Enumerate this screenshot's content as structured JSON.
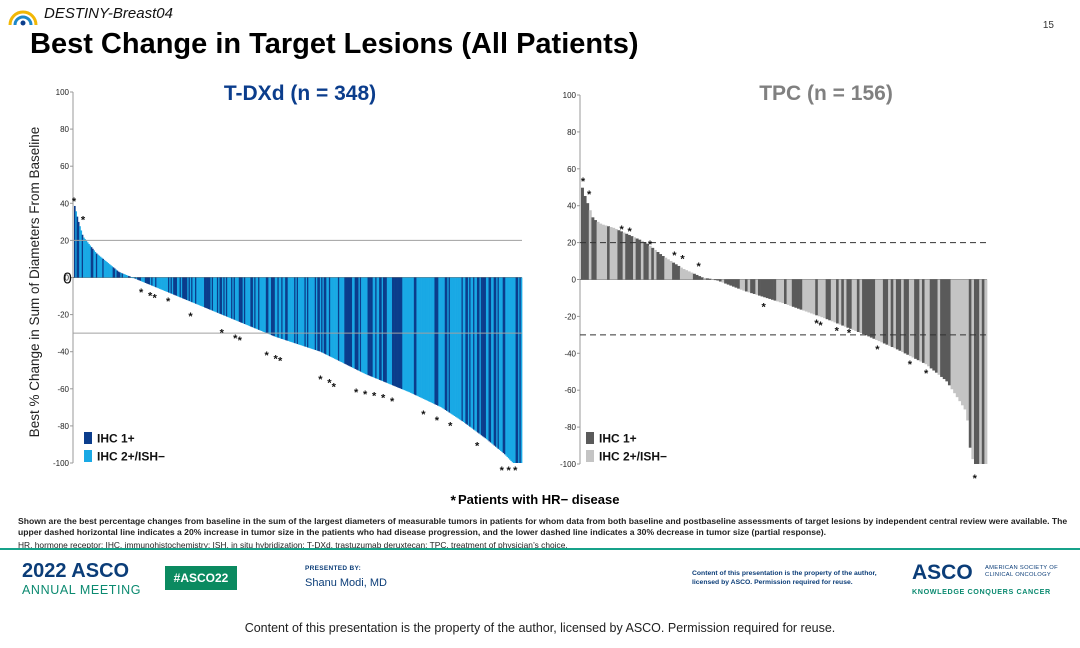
{
  "header": {
    "study_name": "DESTINY-Breast04",
    "slide_number": "15",
    "title": "Best Change in Target Lesions (All Patients)"
  },
  "y_axis_label": "Best % Change in Sum of Diameters From Baseline",
  "footnote": {
    "hr_negative_marker": "*",
    "hr_negative_label": "Patients with HR− disease",
    "main": "Shown are the best percentage changes from baseline in the sum of the largest diameters of measurable tumors in patients for whom data from both baseline and postbaseline assessments of target lesions by independent central review were available. The upper dashed horizontal line indicates a 20% increase in tumor size in the patients who had disease progression, and the lower dashed line indicates a 30% decrease in tumor size (partial response).",
    "abbreviations": "HR, hormone receptor; IHC, immunohistochemistry; ISH, in situ hybridization; T-DXd, trastuzumab deruxtecan; TPC, treatment of physician’s choice."
  },
  "footer": {
    "meeting_year": "2022 ASCO",
    "meeting_label": "ANNUAL MEETING",
    "hashtag": "#ASCO22",
    "presented_by_label": "PRESENTED BY:",
    "presenter": "Shanu Modi, MD",
    "copyright_small": "Content of this presentation is the property of the author, licensed by ASCO. Permission required for reuse.",
    "society_mark": "ASCO",
    "society_name_line1": "AMERICAN SOCIETY OF",
    "society_name_line2": "CLINICAL ONCOLOGY",
    "society_tagline": "KNOWLEDGE CONQUERS CANCER",
    "bottom_copyright": "Content of this presentation is the property of the author, licensed by ASCO. Permission required for reuse."
  },
  "colors": {
    "tdxd_ihc1": "#0b3d8c",
    "tdxd_ihc2": "#19a9e5",
    "tpc_ihc1": "#5a5a5a",
    "tpc_ihc2": "#c4c4c4",
    "title_blue": "#0b3d8c",
    "title_gray": "#808080",
    "asco_blue": "#0b3d78",
    "asco_green": "#0b8a70"
  },
  "chart_data": [
    {
      "type": "bar",
      "panel": "left",
      "title": "T-DXd (n = 348)",
      "ylim": [
        -100,
        100
      ],
      "yticks": [
        100,
        80,
        60,
        40,
        20,
        0,
        -20,
        -40,
        -60,
        -80,
        -100
      ],
      "zero_label": "0",
      "reference_lines": [
        20,
        -30
      ],
      "legend": [
        "IHC 1+",
        "IHC 2+/ISH−"
      ],
      "legend_placement": "bottom-left",
      "series_note": "348 waterfall bars, sorted from largest increase to largest decrease",
      "n": 348,
      "profile": [
        [
          0,
          40
        ],
        [
          0.01,
          30
        ],
        [
          0.02,
          22
        ],
        [
          0.05,
          13
        ],
        [
          0.1,
          3
        ],
        [
          0.13,
          0
        ],
        [
          0.17,
          -4
        ],
        [
          0.25,
          -12
        ],
        [
          0.35,
          -22
        ],
        [
          0.45,
          -32
        ],
        [
          0.55,
          -40
        ],
        [
          0.65,
          -52
        ],
        [
          0.75,
          -62
        ],
        [
          0.82,
          -70
        ],
        [
          0.87,
          -78
        ],
        [
          0.92,
          -87
        ],
        [
          0.96,
          -95
        ],
        [
          0.98,
          -100
        ],
        [
          1.0,
          -100
        ]
      ],
      "asterisks": [
        [
          0.0,
          44
        ],
        [
          0.02,
          34
        ],
        [
          0.15,
          -5
        ],
        [
          0.17,
          -7
        ],
        [
          0.18,
          -8
        ],
        [
          0.21,
          -10
        ],
        [
          0.26,
          -18
        ],
        [
          0.33,
          -27
        ],
        [
          0.36,
          -30
        ],
        [
          0.37,
          -31
        ],
        [
          0.43,
          -39
        ],
        [
          0.45,
          -41
        ],
        [
          0.46,
          -42
        ],
        [
          0.55,
          -52
        ],
        [
          0.57,
          -54
        ],
        [
          0.58,
          -56
        ],
        [
          0.63,
          -59
        ],
        [
          0.65,
          -60
        ],
        [
          0.67,
          -61
        ],
        [
          0.69,
          -62
        ],
        [
          0.71,
          -64
        ],
        [
          0.78,
          -71
        ],
        [
          0.81,
          -74
        ],
        [
          0.84,
          -77
        ],
        [
          0.9,
          -88
        ],
        [
          0.955,
          -101
        ],
        [
          0.97,
          -101
        ],
        [
          0.985,
          -101
        ]
      ]
    },
    {
      "type": "bar",
      "panel": "right",
      "title": "TPC (n = 156)",
      "ylim": [
        -100,
        100
      ],
      "yticks": [
        100,
        80,
        60,
        40,
        20,
        0,
        -20,
        -40,
        -60,
        -80,
        -100
      ],
      "reference_lines": [
        20,
        -30
      ],
      "legend": [
        "IHC 1+",
        "IHC 2+/ISH−"
      ],
      "legend_placement": "bottom-left",
      "series_note": "156 waterfall bars, sorted from largest increase to largest decrease",
      "n": 156,
      "profile": [
        [
          0,
          52
        ],
        [
          0.01,
          45
        ],
        [
          0.03,
          33
        ],
        [
          0.05,
          30
        ],
        [
          0.08,
          28
        ],
        [
          0.12,
          24
        ],
        [
          0.16,
          20
        ],
        [
          0.2,
          13
        ],
        [
          0.25,
          6
        ],
        [
          0.3,
          1
        ],
        [
          0.33,
          0
        ],
        [
          0.4,
          -6
        ],
        [
          0.5,
          -13
        ],
        [
          0.6,
          -21
        ],
        [
          0.7,
          -30
        ],
        [
          0.78,
          -38
        ],
        [
          0.85,
          -46
        ],
        [
          0.9,
          -55
        ],
        [
          0.93,
          -65
        ],
        [
          0.95,
          -72
        ],
        [
          0.96,
          -95
        ],
        [
          0.97,
          -100
        ],
        [
          1.0,
          -100
        ]
      ],
      "asterisks": [
        [
          0.005,
          56
        ],
        [
          0.02,
          49
        ],
        [
          0.1,
          30
        ],
        [
          0.12,
          29
        ],
        [
          0.17,
          22
        ],
        [
          0.23,
          16
        ],
        [
          0.25,
          14
        ],
        [
          0.29,
          10
        ],
        [
          0.45,
          -12
        ],
        [
          0.58,
          -21
        ],
        [
          0.59,
          -22
        ],
        [
          0.63,
          -25
        ],
        [
          0.66,
          -26
        ],
        [
          0.73,
          -35
        ],
        [
          0.81,
          -43
        ],
        [
          0.85,
          -48
        ],
        [
          0.97,
          -105
        ]
      ]
    }
  ]
}
